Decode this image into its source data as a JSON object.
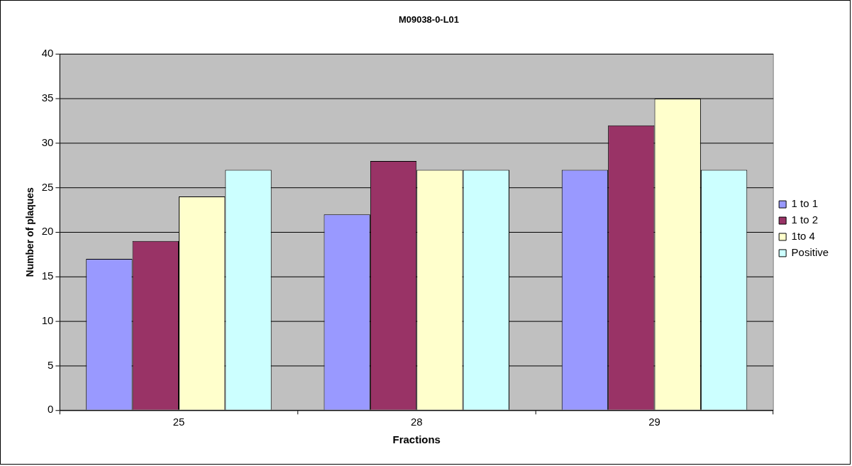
{
  "chart_data": {
    "type": "bar",
    "title": "M09038-0-L01",
    "xlabel": "Fractions",
    "ylabel": "Number of plaques",
    "categories": [
      "25",
      "28",
      "29"
    ],
    "series": [
      {
        "name": "1 to 1",
        "color": "#9999ff",
        "values": [
          17,
          22,
          27
        ]
      },
      {
        "name": "1 to 2",
        "color": "#993366",
        "values": [
          19,
          28,
          32
        ]
      },
      {
        "name": "1to 4",
        "color": "#ffffcc",
        "values": [
          24,
          27,
          35
        ]
      },
      {
        "name": "Positive",
        "color": "#ccffff",
        "values": [
          27,
          27,
          27
        ]
      }
    ],
    "ylim": [
      0,
      40
    ],
    "yticks": [
      0,
      5,
      10,
      15,
      20,
      25,
      30,
      35,
      40
    ],
    "grid": "y",
    "legend": "right"
  }
}
